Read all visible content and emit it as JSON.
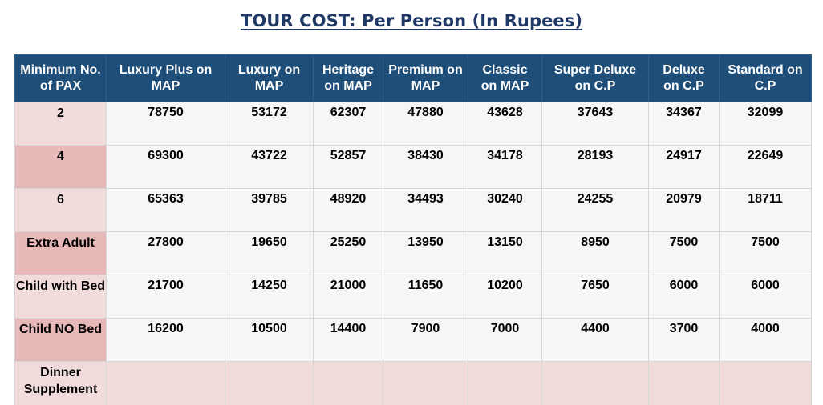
{
  "title": "TOUR COST: Per Person (In Rupees)",
  "table": {
    "headers": [
      "Minimum No. of PAX",
      "Luxury Plus on MAP",
      "Luxury on MAP",
      "Heritage on MAP",
      "Premium on MAP",
      "Classic on MAP",
      "Super Deluxe on C.P",
      "Deluxe on C.P",
      "Standard on C.P"
    ],
    "rows": [
      {
        "label": "2",
        "values": [
          "78750",
          "53172",
          "62307",
          "47880",
          "43628",
          "37643",
          "34367",
          "32099"
        ]
      },
      {
        "label": "4",
        "values": [
          "69300",
          "43722",
          "52857",
          "38430",
          "34178",
          "28193",
          "24917",
          "22649"
        ]
      },
      {
        "label": "6",
        "values": [
          "65363",
          "39785",
          "48920",
          "34493",
          "30240",
          "24255",
          "20979",
          "18711"
        ]
      },
      {
        "label": "Extra Adult",
        "values": [
          "27800",
          "19650",
          "25250",
          "13950",
          "13150",
          "8950",
          "7500",
          "7500"
        ]
      },
      {
        "label": "Child with Bed",
        "values": [
          "21700",
          "14250",
          "21000",
          "11650",
          "10200",
          "7650",
          "6000",
          "6000"
        ]
      },
      {
        "label": "Child NO Bed",
        "values": [
          "16200",
          "10500",
          "14400",
          "7900",
          "7000",
          "4400",
          "3700",
          "4000"
        ]
      },
      {
        "label": "Dinner Supplement",
        "values": [
          "",
          "",
          "",
          "",
          "",
          "",
          "",
          ""
        ]
      }
    ]
  }
}
